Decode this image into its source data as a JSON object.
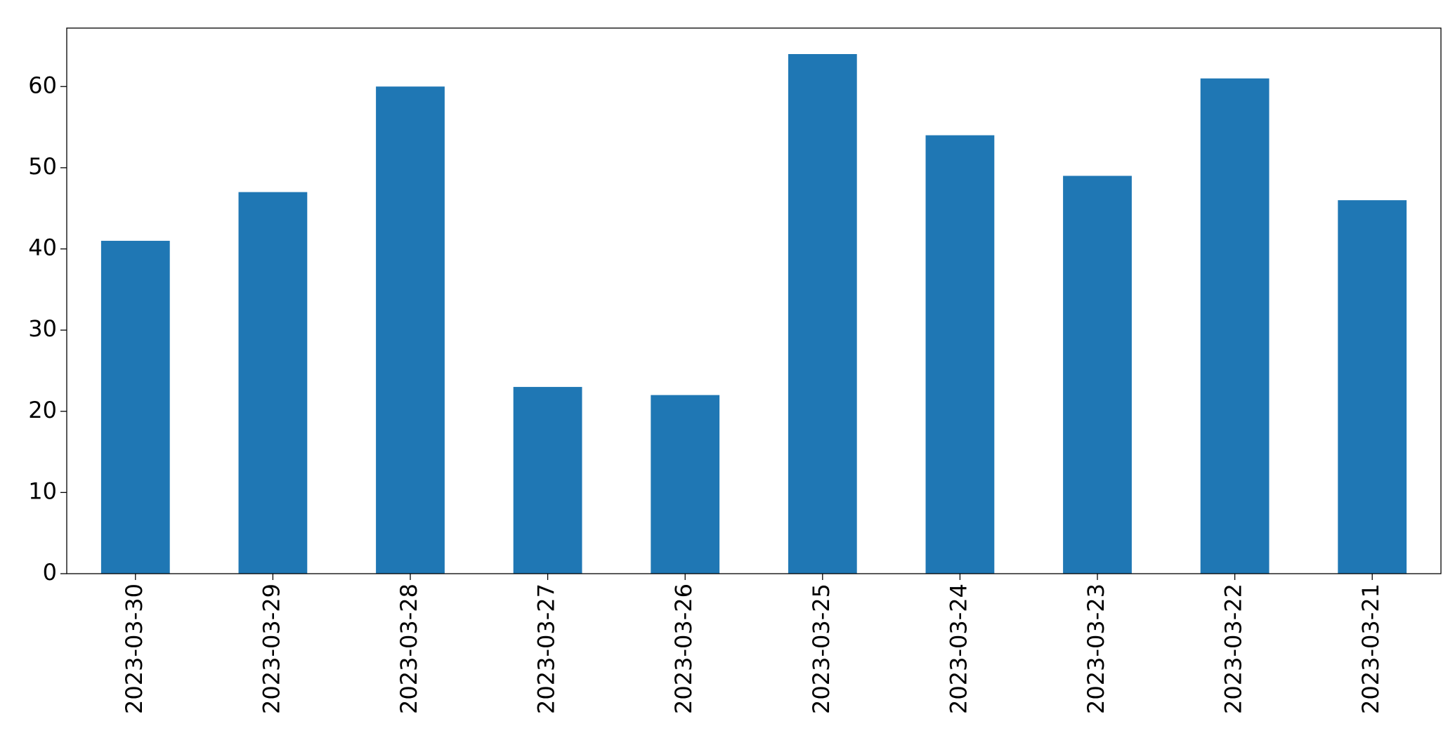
{
  "chart_data": {
    "type": "bar",
    "categories": [
      "2023-03-30",
      "2023-03-29",
      "2023-03-28",
      "2023-03-27",
      "2023-03-26",
      "2023-03-25",
      "2023-03-24",
      "2023-03-23",
      "2023-03-22",
      "2023-03-21"
    ],
    "values": [
      41,
      47,
      60,
      23,
      22,
      64,
      54,
      49,
      61,
      46
    ],
    "color": "#1f77b4",
    "ylim": [
      0,
      67.2
    ],
    "yticks": [
      0,
      10,
      20,
      30,
      40,
      50,
      60
    ],
    "grid": false
  }
}
